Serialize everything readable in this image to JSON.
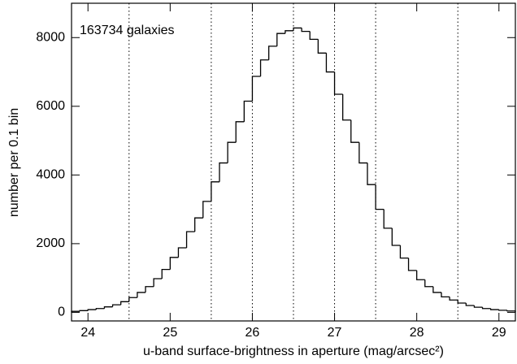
{
  "chart_data": {
    "type": "histogram",
    "annotation": "163734 galaxies",
    "xlabel": "u-band surface-brightness in aperture (mag/arcsec²)",
    "ylabel": "number per 0.1 bin",
    "bins": [
      23.8,
      23.9,
      24.0,
      24.1,
      24.2,
      24.3,
      24.4,
      24.5,
      24.6,
      24.7,
      24.8,
      24.9,
      25.0,
      25.1,
      25.2,
      25.3,
      25.4,
      25.5,
      25.6,
      25.7,
      25.8,
      25.9,
      26.0,
      26.1,
      26.2,
      26.3,
      26.4,
      26.5,
      26.6,
      26.7,
      26.8,
      26.9,
      27.0,
      27.1,
      27.2,
      27.3,
      27.4,
      27.5,
      27.6,
      27.7,
      27.8,
      27.9,
      28.0,
      28.1,
      28.2,
      28.3,
      28.4,
      28.5,
      28.6,
      28.7,
      28.8,
      28.9,
      29.0,
      29.1,
      29.2
    ],
    "values": [
      30,
      50,
      80,
      110,
      160,
      220,
      310,
      430,
      580,
      750,
      980,
      1250,
      1600,
      1880,
      2350,
      2750,
      3230,
      3800,
      4350,
      4950,
      5550,
      6150,
      6870,
      7350,
      7750,
      8120,
      8200,
      8280,
      8180,
      7950,
      7550,
      7000,
      6350,
      5600,
      4950,
      4350,
      3720,
      3000,
      2450,
      1950,
      1580,
      1220,
      950,
      750,
      580,
      450,
      360,
      270,
      200,
      150,
      110,
      80,
      60,
      40
    ],
    "color": "#000000",
    "vlines": [
      24.5,
      25.5,
      26,
      26.5,
      27,
      27.5,
      28.5
    ],
    "xlim": [
      23.8,
      29.2
    ],
    "ylim": [
      -250,
      9000
    ],
    "xticks": [
      24,
      25,
      26,
      27,
      28,
      29
    ],
    "yticks": [
      0,
      2000,
      4000,
      6000,
      8000
    ]
  }
}
